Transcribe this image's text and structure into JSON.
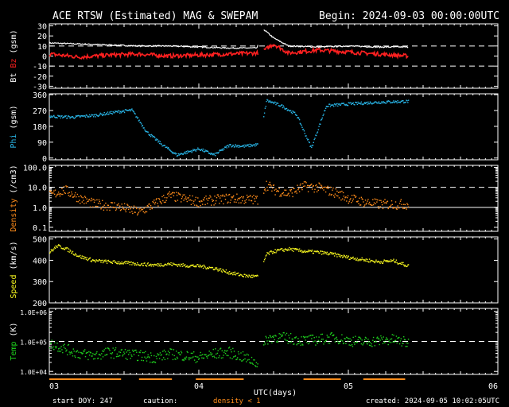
{
  "header": {
    "title": "ACE RTSW (Estimated) MAG & SWEPAM",
    "begin": "Begin: 2024-09-03 00:00:00UTC"
  },
  "footer": {
    "start_doy": "start DOY: 247",
    "caution": "caution:",
    "caution_note": "density < 1",
    "created": "created: 2024-09-05 10:02:05UTC",
    "xlabel": "UTC(days)"
  },
  "colors": {
    "bt": "#ffffff",
    "bz": "#ff2020",
    "phi": "#29b6e8",
    "density": "#ff8c1a",
    "speed": "#f5f51e",
    "temp": "#1ed21e",
    "axes": "#ffffff",
    "background": "#000000"
  },
  "chart_data": [
    {
      "type": "line",
      "ylabel": "Bt  Bz  (gsm)",
      "ylabel_parts": [
        "Bt",
        "Bz",
        "(gsm)"
      ],
      "yticks": [
        "30",
        "20",
        "10",
        "0",
        "-10",
        "-20",
        "-30"
      ],
      "ylim": [
        -32,
        32
      ],
      "dashed_y": [
        10,
        -10
      ],
      "x_days": [
        3.0,
        3.2,
        3.4,
        3.6,
        3.8,
        4.0,
        4.2,
        4.39,
        4.43,
        4.5,
        4.6,
        4.8,
        5.0,
        5.2,
        5.4
      ],
      "series": [
        {
          "name": "Bt",
          "values": [
            13,
            12,
            11,
            10,
            10,
            9,
            8,
            8,
            27,
            18,
            10,
            9,
            10,
            9,
            9
          ]
        },
        {
          "name": "Bz",
          "values": [
            2,
            -1,
            1,
            2,
            0,
            1,
            2,
            3,
            5,
            12,
            3,
            6,
            4,
            2,
            0
          ]
        }
      ]
    },
    {
      "type": "scatter",
      "ylabel": "Phi (gsm)",
      "yticks": [
        "360",
        "270",
        "180",
        "90",
        "0"
      ],
      "ylim": [
        -10,
        365
      ],
      "x_days": [
        3.0,
        3.15,
        3.3,
        3.45,
        3.55,
        3.65,
        3.75,
        3.85,
        4.0,
        4.1,
        4.2,
        4.3,
        4.4,
        4.45,
        4.55,
        4.65,
        4.75,
        4.85,
        5.0,
        5.2,
        5.4
      ],
      "values": [
        240,
        235,
        245,
        265,
        275,
        150,
        80,
        20,
        55,
        20,
        75,
        70,
        80,
        330,
        300,
        250,
        60,
        300,
        310,
        320,
        325
      ]
    },
    {
      "type": "scatter",
      "ylabel": "Density (/cm3)",
      "yticks": [
        "100.0",
        "10.0",
        "1.0",
        "0.1"
      ],
      "ylim_log10": [
        -1.2,
        2.1
      ],
      "dashed_y": [
        10
      ],
      "solid_y": [
        1
      ],
      "x_days": [
        3.0,
        3.1,
        3.2,
        3.3,
        3.45,
        3.6,
        3.8,
        4.0,
        4.2,
        4.39,
        4.45,
        4.5,
        4.6,
        4.7,
        4.8,
        4.9,
        5.0,
        5.1,
        5.2,
        5.3,
        5.4
      ],
      "values": [
        4,
        8,
        3,
        1.5,
        1.2,
        0.6,
        4,
        2,
        3,
        2.5,
        15,
        8,
        5,
        12,
        10,
        6,
        3,
        2,
        1.5,
        1.5,
        1.5
      ]
    },
    {
      "type": "scatter",
      "ylabel": "Speed (km/s)",
      "yticks": [
        "500",
        "400",
        "300",
        "200"
      ],
      "ylim": [
        200,
        510
      ],
      "x_days": [
        3.0,
        3.05,
        3.1,
        3.2,
        3.3,
        3.4,
        3.5,
        3.6,
        3.7,
        3.8,
        3.9,
        4.0,
        4.1,
        4.2,
        4.3,
        4.39,
        4.45,
        4.5,
        4.6,
        4.7,
        4.8,
        4.9,
        5.0,
        5.1,
        5.2,
        5.3,
        5.4
      ],
      "values": [
        440,
        470,
        460,
        420,
        400,
        395,
        390,
        385,
        380,
        385,
        378,
        375,
        365,
        345,
        330,
        325,
        430,
        445,
        455,
        445,
        440,
        430,
        415,
        405,
        395,
        400,
        375
      ]
    },
    {
      "type": "scatter",
      "ylabel": "Temp (K)",
      "yticks": [
        "1.0E+06",
        "1.0E+05",
        "1.0E+04"
      ],
      "ylim_log10": [
        3.9,
        6.1
      ],
      "dashed_y": [
        100000
      ],
      "x_days": [
        3.0,
        3.1,
        3.2,
        3.3,
        3.4,
        3.5,
        3.6,
        3.7,
        3.8,
        3.9,
        4.0,
        4.1,
        4.2,
        4.3,
        4.39,
        4.45,
        4.5,
        4.6,
        4.7,
        4.8,
        4.9,
        5.0,
        5.1,
        5.2,
        5.3,
        5.4
      ],
      "values": [
        90000,
        60000,
        40000,
        35000,
        45000,
        40000,
        35000,
        30000,
        40000,
        35000,
        30000,
        40000,
        45000,
        30000,
        20000,
        120000,
        150000,
        130000,
        110000,
        120000,
        140000,
        110000,
        100000,
        110000,
        120000,
        90000
      ]
    }
  ],
  "x_axis": {
    "xlim_days": [
      3,
      6
    ],
    "tick_labels": [
      "03",
      "04",
      "05",
      "06"
    ]
  }
}
